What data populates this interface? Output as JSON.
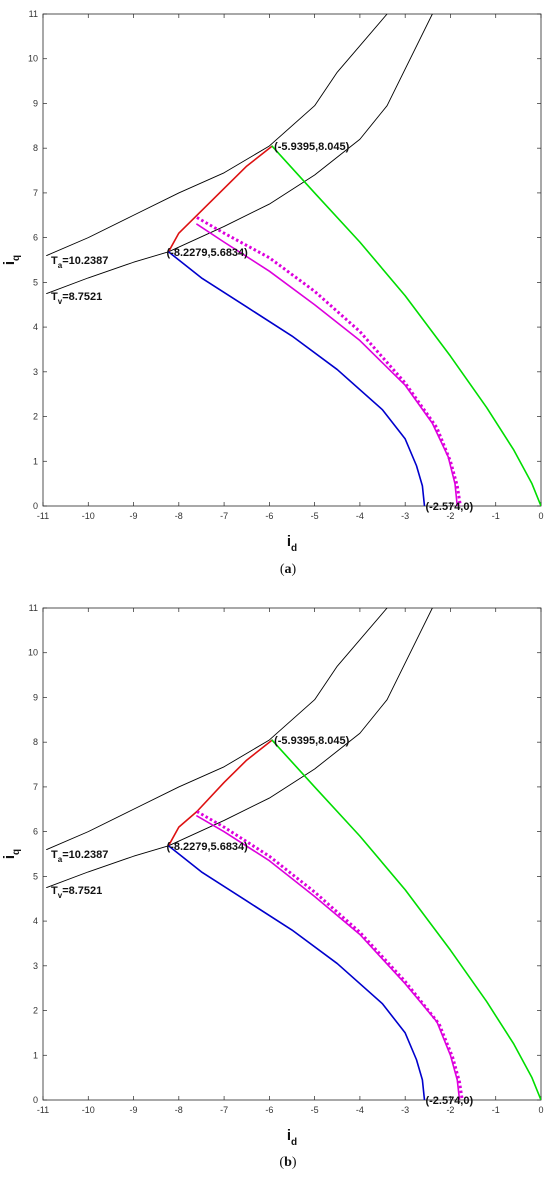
{
  "chart_data": [
    {
      "type": "line",
      "caption": "(a)",
      "caption_letter": "a",
      "xlabel": "i",
      "xlabel_sub": "d",
      "ylabel": "i",
      "ylabel_sub": "q",
      "xlim": [
        -11,
        0
      ],
      "ylim": [
        0,
        11
      ],
      "xticks": [
        "-11",
        "-10",
        "-9",
        "-8",
        "-7",
        "-6",
        "-5",
        "-4",
        "-3",
        "-2",
        "-1",
        "0"
      ],
      "yticks": [
        "0",
        "1",
        "2",
        "3",
        "4",
        "5",
        "6",
        "7",
        "8",
        "9",
        "10",
        "11"
      ],
      "grid": false,
      "annotations": [
        {
          "name": "ta-label",
          "main": "T",
          "sub": "a",
          "rest": "=10.2387",
          "x": -11,
          "y": 5.5
        },
        {
          "name": "tv-label",
          "main": "T",
          "sub": "v",
          "rest": "=8.7521",
          "x": -11,
          "y": 4.7
        },
        {
          "name": "point-top",
          "text": "(-5.9395,8.045)",
          "x": -5.9395,
          "y": 8.045
        },
        {
          "name": "point-mid",
          "text": "(-8.2279,5.6834)",
          "x": -8.2279,
          "y": 5.6834
        },
        {
          "name": "point-bottom",
          "text": "(-2.574,0)",
          "x": -2.574,
          "y": 0
        }
      ],
      "series": [
        {
          "key": "ta-curve",
          "color": "#000000",
          "style": "solid",
          "x": [
            -10.92,
            -10,
            -9,
            -8,
            -7,
            -6,
            -5,
            -4.5,
            -3.4
          ],
          "y": [
            5.6,
            6.0,
            6.5,
            7.0,
            7.45,
            8.05,
            8.95,
            9.7,
            11.0
          ]
        },
        {
          "key": "tv-curve",
          "color": "#000000",
          "style": "solid",
          "x": [
            -10.92,
            -10,
            -9,
            -8.2279,
            -7,
            -6,
            -5,
            -4,
            -3.4,
            -2.4
          ],
          "y": [
            4.75,
            5.1,
            5.45,
            5.6834,
            6.25,
            6.75,
            7.4,
            8.2,
            8.95,
            11.0
          ]
        },
        {
          "key": "red-curve",
          "color": "#dd1111",
          "style": "solid",
          "x": [
            -8.2279,
            -8.0,
            -7.6,
            -7.0,
            -6.5,
            -5.9395
          ],
          "y": [
            5.6834,
            6.1,
            6.5,
            7.1,
            7.6,
            8.045
          ]
        },
        {
          "key": "green-curve",
          "color": "#00dd00",
          "style": "solid",
          "x": [
            -5.9395,
            -5.0,
            -4.0,
            -3.0,
            -2.0,
            -1.2,
            -0.6,
            -0.2,
            0
          ],
          "y": [
            8.045,
            7.0,
            5.9,
            4.7,
            3.35,
            2.2,
            1.25,
            0.5,
            0
          ]
        },
        {
          "key": "blue-curve",
          "color": "#0000cc",
          "style": "solid",
          "x": [
            -8.2279,
            -7.5,
            -6.5,
            -5.5,
            -4.5,
            -3.5,
            -3.0,
            -2.75,
            -2.62,
            -2.574
          ],
          "y": [
            5.6834,
            5.1,
            4.45,
            3.8,
            3.05,
            2.15,
            1.5,
            0.9,
            0.45,
            0
          ]
        },
        {
          "key": "magenta-solid",
          "color": "#dd00dd",
          "style": "solid",
          "x": [
            -7.6,
            -7.0,
            -6.0,
            -5.0,
            -4.0,
            -3.0,
            -2.4,
            -2.05,
            -1.9,
            -1.85
          ],
          "y": [
            6.3,
            5.9,
            5.25,
            4.5,
            3.7,
            2.7,
            1.85,
            1.1,
            0.5,
            0
          ]
        },
        {
          "key": "magenta-dotted",
          "color": "#dd00dd",
          "style": "dotted",
          "x": [
            -7.6,
            -7.0,
            -6.0,
            -5.0,
            -4.0,
            -3.0,
            -2.3,
            -2.0,
            -1.85,
            -1.78
          ],
          "y": [
            6.45,
            6.1,
            5.55,
            4.8,
            3.9,
            2.75,
            1.75,
            1.0,
            0.45,
            0
          ]
        }
      ]
    },
    {
      "type": "line",
      "caption": "(b)",
      "caption_letter": "b",
      "xlabel": "i",
      "xlabel_sub": "d",
      "ylabel": "i",
      "ylabel_sub": "q",
      "xlim": [
        -11,
        0
      ],
      "ylim": [
        0,
        11
      ],
      "xticks": [
        "-11",
        "-10",
        "-9",
        "-8",
        "-7",
        "-6",
        "-5",
        "-4",
        "-3",
        "-2",
        "-1",
        "0"
      ],
      "yticks": [
        "0",
        "1",
        "2",
        "3",
        "4",
        "5",
        "6",
        "7",
        "8",
        "9",
        "10",
        "11"
      ],
      "grid": false,
      "annotations": [
        {
          "name": "ta-label",
          "main": "T",
          "sub": "a",
          "rest": "=10.2387",
          "x": -11,
          "y": 5.5
        },
        {
          "name": "tv-label",
          "main": "T",
          "sub": "v",
          "rest": "=8.7521",
          "x": -11,
          "y": 4.7
        },
        {
          "name": "point-top",
          "text": "(-5.9395,8.045)",
          "x": -5.9395,
          "y": 8.045
        },
        {
          "name": "point-mid",
          "text": "(-8.2279,5.6834)",
          "x": -8.2279,
          "y": 5.6834
        },
        {
          "name": "point-bottom",
          "text": "(-2.574,0)",
          "x": -2.574,
          "y": 0
        }
      ],
      "series": [
        {
          "key": "ta-curve",
          "color": "#000000",
          "style": "solid",
          "x": [
            -10.92,
            -10,
            -9,
            -8,
            -7,
            -6,
            -5,
            -4.5,
            -3.4
          ],
          "y": [
            5.6,
            6.0,
            6.5,
            7.0,
            7.45,
            8.05,
            8.95,
            9.7,
            11.0
          ]
        },
        {
          "key": "tv-curve",
          "color": "#000000",
          "style": "solid",
          "x": [
            -10.92,
            -10,
            -9,
            -8.2279,
            -7,
            -6,
            -5,
            -4,
            -3.4,
            -2.4
          ],
          "y": [
            4.75,
            5.1,
            5.45,
            5.6834,
            6.25,
            6.75,
            7.4,
            8.2,
            8.95,
            11.0
          ]
        },
        {
          "key": "red-curve",
          "color": "#dd1111",
          "style": "solid",
          "x": [
            -8.2279,
            -8.0,
            -7.6,
            -7.0,
            -6.5,
            -5.9395
          ],
          "y": [
            5.6834,
            6.1,
            6.45,
            7.1,
            7.6,
            8.045
          ]
        },
        {
          "key": "green-curve",
          "color": "#00dd00",
          "style": "solid",
          "x": [
            -5.9395,
            -5.0,
            -4.0,
            -3.0,
            -2.0,
            -1.2,
            -0.6,
            -0.2,
            0
          ],
          "y": [
            8.045,
            7.0,
            5.9,
            4.7,
            3.35,
            2.2,
            1.25,
            0.5,
            0
          ]
        },
        {
          "key": "blue-curve",
          "color": "#0000cc",
          "style": "solid",
          "x": [
            -8.2279,
            -7.5,
            -6.5,
            -5.5,
            -4.5,
            -3.5,
            -3.0,
            -2.75,
            -2.62,
            -2.574
          ],
          "y": [
            5.6834,
            5.1,
            4.45,
            3.8,
            3.05,
            2.15,
            1.5,
            0.9,
            0.45,
            0
          ]
        },
        {
          "key": "magenta-solid",
          "color": "#dd00dd",
          "style": "solid",
          "x": [
            -7.6,
            -7.0,
            -6.0,
            -5.0,
            -4.0,
            -3.0,
            -2.3,
            -2.0,
            -1.85,
            -1.8
          ],
          "y": [
            6.35,
            6.0,
            5.35,
            4.55,
            3.7,
            2.6,
            1.75,
            1.0,
            0.45,
            0
          ]
        },
        {
          "key": "magenta-dotted",
          "color": "#dd00dd",
          "style": "dotted",
          "x": [
            -7.6,
            -7.0,
            -6.0,
            -5.0,
            -4.0,
            -3.0,
            -2.25,
            -1.95,
            -1.8,
            -1.74
          ],
          "y": [
            6.45,
            6.1,
            5.45,
            4.65,
            3.75,
            2.65,
            1.7,
            0.95,
            0.4,
            0
          ]
        }
      ]
    }
  ]
}
